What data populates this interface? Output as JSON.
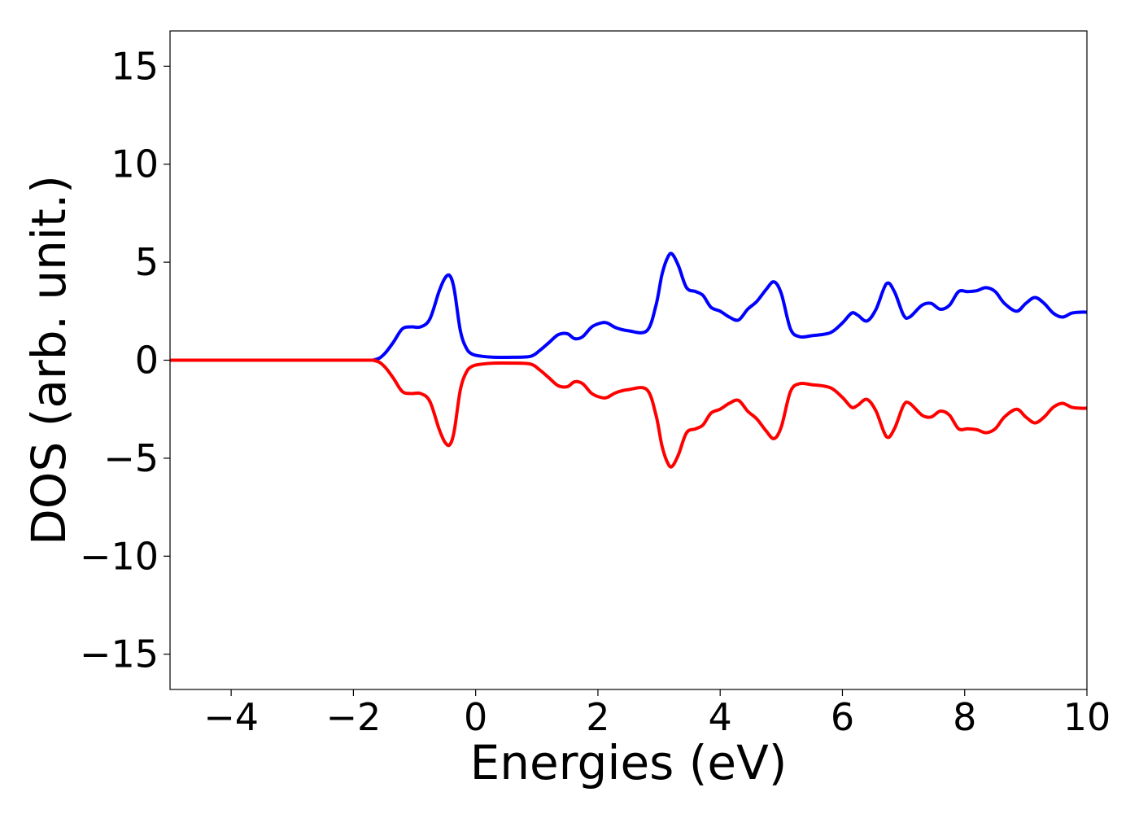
{
  "chart_data": {
    "type": "line",
    "title": "",
    "xlabel": "Energies (eV)",
    "ylabel": "DOS (arb. unit.)",
    "xlim": [
      -5,
      10
    ],
    "ylim": [
      -16.8,
      16.8
    ],
    "xticks": [
      -4,
      -2,
      0,
      2,
      4,
      6,
      8,
      10
    ],
    "xtick_labels": [
      "−4",
      "−2",
      "0",
      "2",
      "4",
      "6",
      "8",
      "10"
    ],
    "yticks": [
      15,
      10,
      5,
      0,
      -5,
      -10,
      -15
    ],
    "ytick_labels": [
      "15",
      "10",
      "5",
      "0",
      "−5",
      "−10",
      "−15"
    ],
    "grid": false,
    "legend": "none",
    "series": [
      {
        "color": "#0000ff",
        "x": [
          -5,
          -2,
          -1.65,
          -1.5,
          -1.35,
          -1.2,
          -1.05,
          -0.9,
          -0.75,
          -0.6,
          -0.5,
          -0.42,
          -0.35,
          -0.25,
          -0.15,
          -0.05,
          0.1,
          0.3,
          0.6,
          0.9,
          1.05,
          1.2,
          1.35,
          1.5,
          1.62,
          1.75,
          1.9,
          2.05,
          2.15,
          2.3,
          2.5,
          2.8,
          2.95,
          3.05,
          3.15,
          3.22,
          3.32,
          3.45,
          3.6,
          3.72,
          3.85,
          4.0,
          4.15,
          4.3,
          4.45,
          4.6,
          4.75,
          4.88,
          5.0,
          5.15,
          5.3,
          5.5,
          5.8,
          6.0,
          6.15,
          6.25,
          6.4,
          6.55,
          6.72,
          6.85,
          7.0,
          7.1,
          7.3,
          7.45,
          7.6,
          7.75,
          7.9,
          8.05,
          8.2,
          8.35,
          8.5,
          8.65,
          8.85,
          9.0,
          9.15,
          9.3,
          9.45,
          9.6,
          9.75,
          9.9,
          10.0
        ],
        "y": [
          0,
          0,
          0.03,
          0.3,
          0.9,
          1.6,
          1.7,
          1.7,
          2.1,
          3.5,
          4.2,
          4.3,
          3.6,
          1.5,
          0.6,
          0.3,
          0.2,
          0.15,
          0.15,
          0.2,
          0.5,
          0.9,
          1.3,
          1.35,
          1.1,
          1.2,
          1.7,
          1.9,
          1.9,
          1.65,
          1.5,
          1.5,
          2.8,
          4.4,
          5.3,
          5.4,
          4.8,
          3.7,
          3.5,
          3.3,
          2.7,
          2.5,
          2.2,
          2.05,
          2.6,
          3.0,
          3.6,
          4.0,
          3.4,
          1.6,
          1.2,
          1.25,
          1.4,
          1.9,
          2.4,
          2.3,
          2.0,
          2.6,
          3.9,
          3.5,
          2.3,
          2.2,
          2.8,
          2.9,
          2.6,
          2.8,
          3.5,
          3.5,
          3.55,
          3.7,
          3.5,
          2.9,
          2.5,
          2.9,
          3.2,
          2.9,
          2.4,
          2.2,
          2.4,
          2.45,
          2.45
        ]
      },
      {
        "color": "#ff0000",
        "x": [
          -5,
          -2,
          -1.65,
          -1.5,
          -1.35,
          -1.2,
          -1.05,
          -0.9,
          -0.75,
          -0.6,
          -0.5,
          -0.42,
          -0.35,
          -0.25,
          -0.15,
          -0.05,
          0.1,
          0.3,
          0.6,
          0.9,
          1.05,
          1.2,
          1.35,
          1.5,
          1.62,
          1.75,
          1.9,
          2.05,
          2.15,
          2.3,
          2.5,
          2.8,
          2.95,
          3.05,
          3.15,
          3.22,
          3.32,
          3.45,
          3.6,
          3.72,
          3.85,
          4.0,
          4.15,
          4.3,
          4.45,
          4.6,
          4.75,
          4.88,
          5.0,
          5.15,
          5.3,
          5.5,
          5.8,
          6.0,
          6.15,
          6.25,
          6.4,
          6.55,
          6.72,
          6.85,
          7.0,
          7.1,
          7.3,
          7.45,
          7.6,
          7.75,
          7.9,
          8.05,
          8.2,
          8.35,
          8.5,
          8.65,
          8.85,
          9.0,
          9.15,
          9.3,
          9.45,
          9.6,
          9.75,
          9.9,
          10.0
        ],
        "y": [
          0,
          0,
          -0.03,
          -0.3,
          -0.9,
          -1.6,
          -1.7,
          -1.7,
          -2.1,
          -3.5,
          -4.2,
          -4.3,
          -3.6,
          -1.5,
          -0.6,
          -0.3,
          -0.2,
          -0.15,
          -0.15,
          -0.2,
          -0.5,
          -0.9,
          -1.3,
          -1.35,
          -1.1,
          -1.2,
          -1.7,
          -1.9,
          -1.9,
          -1.65,
          -1.5,
          -1.5,
          -2.8,
          -4.4,
          -5.3,
          -5.4,
          -4.8,
          -3.7,
          -3.5,
          -3.3,
          -2.7,
          -2.5,
          -2.2,
          -2.05,
          -2.6,
          -3.0,
          -3.6,
          -4.0,
          -3.4,
          -1.6,
          -1.2,
          -1.25,
          -1.4,
          -1.9,
          -2.4,
          -2.3,
          -2.0,
          -2.6,
          -3.9,
          -3.5,
          -2.3,
          -2.2,
          -2.8,
          -2.9,
          -2.6,
          -2.8,
          -3.5,
          -3.5,
          -3.55,
          -3.7,
          -3.5,
          -2.9,
          -2.5,
          -2.9,
          -3.2,
          -2.9,
          -2.4,
          -2.2,
          -2.4,
          -2.45,
          -2.45
        ]
      }
    ]
  }
}
